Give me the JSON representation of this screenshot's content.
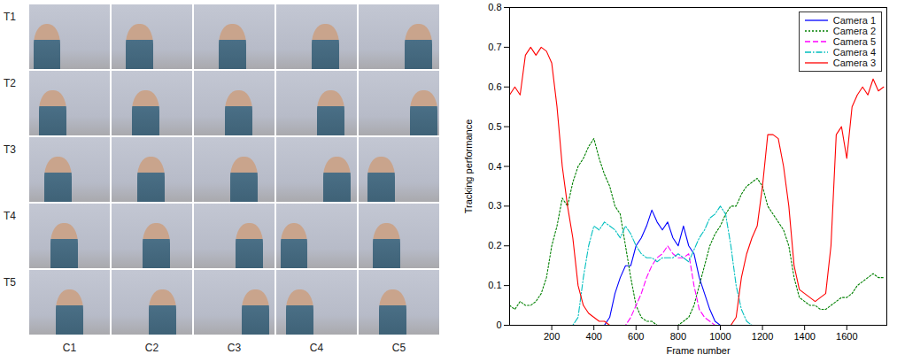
{
  "chart_data": {
    "type": "line",
    "x_label": "Frame number",
    "y_label": "Tracking performance",
    "xlim": [
      0,
      1790
    ],
    "xticks": [
      200,
      400,
      600,
      800,
      1000,
      1200,
      1400,
      1600
    ],
    "ylim": [
      0,
      0.8
    ],
    "yticks": [
      0,
      0.1,
      0.2,
      0.3,
      0.4,
      0.5,
      0.6,
      0.7,
      0.8
    ],
    "grid": false,
    "legend": "top-right",
    "x": [
      0,
      25,
      50,
      75,
      100,
      125,
      150,
      175,
      200,
      225,
      250,
      275,
      300,
      325,
      350,
      375,
      400,
      425,
      450,
      475,
      500,
      525,
      550,
      575,
      600,
      625,
      650,
      675,
      700,
      725,
      750,
      775,
      800,
      825,
      850,
      875,
      900,
      925,
      950,
      975,
      1000,
      1025,
      1050,
      1075,
      1100,
      1125,
      1150,
      1175,
      1200,
      1225,
      1250,
      1275,
      1300,
      1325,
      1350,
      1375,
      1400,
      1425,
      1450,
      1475,
      1500,
      1525,
      1550,
      1575,
      1600,
      1625,
      1650,
      1675,
      1700,
      1725,
      1750,
      1775
    ],
    "series": [
      {
        "name": "Camera 1",
        "color": "#0000ff",
        "line_style": "solid",
        "values": [
          0,
          0,
          0,
          0,
          0,
          0,
          0,
          0,
          0,
          0,
          0,
          0,
          0,
          0,
          0,
          0,
          0,
          0,
          0,
          0.02,
          0.08,
          0.12,
          0.15,
          0.15,
          0.2,
          0.22,
          0.25,
          0.29,
          0.26,
          0.24,
          0.26,
          0.22,
          0.2,
          0.25,
          0.2,
          0.18,
          0.12,
          0.08,
          0.04,
          0.01,
          0,
          0,
          0,
          0,
          0,
          0,
          0,
          0,
          0,
          0,
          0,
          0,
          0,
          0,
          0,
          0,
          0,
          0,
          0,
          0,
          0,
          0,
          0,
          0,
          0,
          0,
          0,
          0,
          0,
          0,
          0,
          0
        ]
      },
      {
        "name": "Camera 2",
        "color": "#008000",
        "line_style": "dotted",
        "values": [
          0.05,
          0.04,
          0.06,
          0.05,
          0.05,
          0.06,
          0.08,
          0.12,
          0.2,
          0.25,
          0.32,
          0.3,
          0.36,
          0.4,
          0.42,
          0.45,
          0.47,
          0.42,
          0.38,
          0.35,
          0.3,
          0.28,
          0.2,
          0.12,
          0.05,
          0.02,
          0.01,
          0.01,
          0,
          0,
          0,
          0,
          0,
          0.01,
          0.02,
          0.05,
          0.1,
          0.15,
          0.2,
          0.23,
          0.25,
          0.28,
          0.3,
          0.3,
          0.33,
          0.35,
          0.36,
          0.37,
          0.35,
          0.3,
          0.28,
          0.26,
          0.24,
          0.2,
          0.12,
          0.07,
          0.06,
          0.05,
          0.05,
          0.04,
          0.04,
          0.05,
          0.06,
          0.07,
          0.07,
          0.08,
          0.1,
          0.11,
          0.12,
          0.13,
          0.12,
          0.12
        ]
      },
      {
        "name": "Camera 5",
        "color": "#ff00ff",
        "line_style": "dashed",
        "values": [
          0,
          0,
          0,
          0,
          0,
          0,
          0,
          0,
          0,
          0,
          0,
          0,
          0,
          0,
          0,
          0,
          0,
          0,
          0,
          0,
          0,
          0,
          0,
          0.02,
          0.05,
          0.08,
          0.12,
          0.15,
          0.17,
          0.18,
          0.2,
          0.18,
          0.17,
          0.17,
          0.18,
          0.1,
          0.04,
          0.02,
          0.01,
          0,
          0,
          0,
          0,
          0,
          0,
          0,
          0,
          0,
          0,
          0,
          0,
          0,
          0,
          0,
          0,
          0,
          0,
          0,
          0,
          0,
          0,
          0,
          0,
          0,
          0,
          0,
          0,
          0,
          0,
          0,
          0,
          0
        ]
      },
      {
        "name": "Camera 4",
        "color": "#00bfbf",
        "line_style": "dashdot",
        "values": [
          0,
          0,
          0,
          0,
          0,
          0,
          0,
          0,
          0,
          0,
          0,
          0,
          0,
          0.02,
          0.12,
          0.2,
          0.25,
          0.24,
          0.26,
          0.25,
          0.24,
          0.22,
          0.25,
          0.23,
          0.2,
          0.18,
          0.17,
          0.17,
          0.16,
          0.17,
          0.17,
          0.17,
          0.18,
          0.17,
          0.16,
          0.19,
          0.22,
          0.24,
          0.27,
          0.28,
          0.3,
          0.28,
          0.2,
          0.1,
          0.04,
          0.01,
          0,
          0,
          0,
          0,
          0,
          0,
          0,
          0,
          0,
          0,
          0,
          0,
          0,
          0,
          0,
          0,
          0,
          0,
          0,
          0,
          0,
          0,
          0,
          0,
          0,
          0
        ]
      },
      {
        "name": "Camera 3",
        "color": "#ff0000",
        "line_style": "solid",
        "values": [
          0.58,
          0.6,
          0.58,
          0.68,
          0.7,
          0.68,
          0.7,
          0.69,
          0.66,
          0.55,
          0.4,
          0.3,
          0.22,
          0.1,
          0.05,
          0.03,
          0.02,
          0.01,
          0.01,
          0,
          0,
          0,
          0,
          0,
          0,
          0,
          0,
          0,
          0,
          0,
          0,
          0,
          0,
          0,
          0,
          0,
          0,
          0,
          0,
          0,
          0,
          0,
          0,
          0.02,
          0.12,
          0.18,
          0.22,
          0.25,
          0.35,
          0.48,
          0.48,
          0.47,
          0.4,
          0.3,
          0.15,
          0.09,
          0.08,
          0.07,
          0.06,
          0.07,
          0.08,
          0.2,
          0.48,
          0.5,
          0.42,
          0.55,
          0.58,
          0.6,
          0.58,
          0.62,
          0.59,
          0.6
        ]
      }
    ]
  },
  "image_grid": {
    "row_labels": [
      "T1",
      "T2",
      "T3",
      "T4",
      "T5"
    ],
    "column_labels": [
      "C1",
      "C2",
      "C3",
      "C4",
      "C5"
    ]
  }
}
